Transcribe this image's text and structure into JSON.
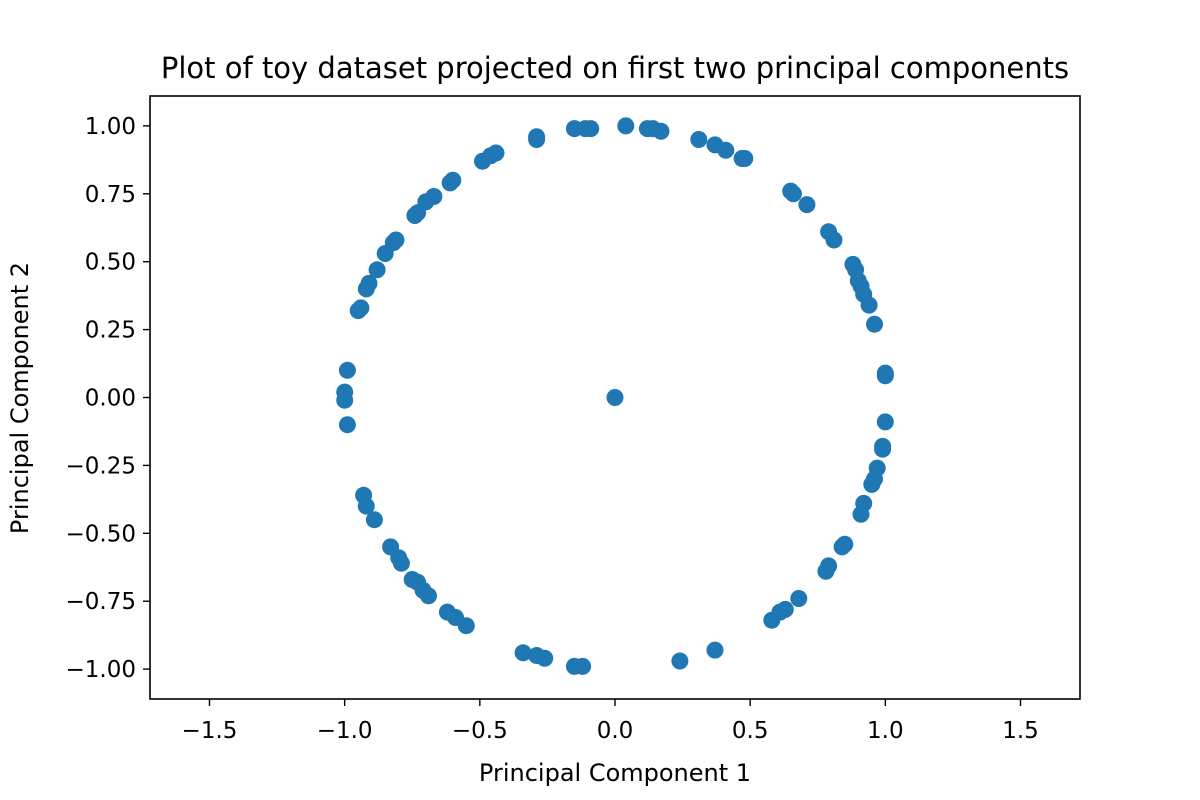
{
  "chart_data": {
    "type": "scatter",
    "title": "Plot of toy dataset projected on first two principal components",
    "xlabel": "Principal Component 1",
    "ylabel": "Principal Component 2",
    "xlim": [
      -1.72,
      1.72
    ],
    "ylim": [
      -1.11,
      1.11
    ],
    "xticks": [
      -1.5,
      -1.0,
      -0.5,
      0.0,
      0.5,
      1.0,
      1.5
    ],
    "xtick_labels": [
      "−1.5",
      "−1.0",
      "−0.5",
      "0.0",
      "0.5",
      "1.0",
      "1.5"
    ],
    "yticks": [
      1.0,
      0.75,
      0.5,
      0.25,
      0.0,
      -0.25,
      -0.5,
      -0.75,
      -1.0
    ],
    "ytick_labels": [
      "1.00",
      "0.75",
      "0.50",
      "0.25",
      "0.00",
      "−0.25",
      "−0.50",
      "−0.75",
      "−1.00"
    ],
    "grid": false,
    "marker_color": "#1f77b4",
    "series": [
      {
        "points": [
          [
            -0.29,
            0.96
          ],
          [
            -0.29,
            0.95
          ],
          [
            -0.15,
            0.99
          ],
          [
            -0.11,
            0.99
          ],
          [
            -0.09,
            0.99
          ],
          [
            0.04,
            1.0
          ],
          [
            0.12,
            0.99
          ],
          [
            0.14,
            0.99
          ],
          [
            0.17,
            0.98
          ],
          [
            0.31,
            0.95
          ],
          [
            0.37,
            0.93
          ],
          [
            0.41,
            0.91
          ],
          [
            0.47,
            0.88
          ],
          [
            0.48,
            0.88
          ],
          [
            -0.49,
            0.87
          ],
          [
            -0.46,
            0.89
          ],
          [
            -0.44,
            0.9
          ],
          [
            -0.6,
            0.8
          ],
          [
            -0.61,
            0.79
          ],
          [
            -0.67,
            0.74
          ],
          [
            -0.7,
            0.72
          ],
          [
            -0.73,
            0.68
          ],
          [
            -0.74,
            0.67
          ],
          [
            -0.81,
            0.58
          ],
          [
            -0.82,
            0.57
          ],
          [
            -0.85,
            0.53
          ],
          [
            -0.88,
            0.47
          ],
          [
            -0.91,
            0.42
          ],
          [
            -0.92,
            0.4
          ],
          [
            -0.94,
            0.33
          ],
          [
            -0.95,
            0.32
          ],
          [
            0.65,
            0.76
          ],
          [
            0.66,
            0.75
          ],
          [
            0.71,
            0.71
          ],
          [
            0.79,
            0.61
          ],
          [
            0.81,
            0.58
          ],
          [
            0.88,
            0.49
          ],
          [
            0.89,
            0.47
          ],
          [
            0.9,
            0.43
          ],
          [
            0.91,
            0.41
          ],
          [
            0.92,
            0.38
          ],
          [
            0.94,
            0.34
          ],
          [
            0.96,
            0.27
          ],
          [
            1.0,
            0.09
          ],
          [
            1.0,
            0.08
          ],
          [
            1.0,
            -0.09
          ],
          [
            -0.99,
            0.1
          ],
          [
            -1.0,
            0.02
          ],
          [
            -1.0,
            -0.01
          ],
          [
            -0.99,
            -0.1
          ],
          [
            0.0,
            0.0
          ],
          [
            0.99,
            -0.18
          ],
          [
            0.99,
            -0.19
          ],
          [
            0.97,
            -0.26
          ],
          [
            0.96,
            -0.3
          ],
          [
            0.95,
            -0.32
          ],
          [
            0.92,
            -0.39
          ],
          [
            0.91,
            -0.43
          ],
          [
            0.85,
            -0.54
          ],
          [
            0.84,
            -0.55
          ],
          [
            0.79,
            -0.62
          ],
          [
            0.78,
            -0.64
          ],
          [
            0.68,
            -0.74
          ],
          [
            0.63,
            -0.78
          ],
          [
            0.61,
            -0.79
          ],
          [
            0.58,
            -0.82
          ],
          [
            -0.93,
            -0.36
          ],
          [
            -0.92,
            -0.4
          ],
          [
            -0.89,
            -0.45
          ],
          [
            -0.83,
            -0.55
          ],
          [
            -0.8,
            -0.59
          ],
          [
            -0.79,
            -0.61
          ],
          [
            -0.75,
            -0.67
          ],
          [
            -0.73,
            -0.68
          ],
          [
            -0.71,
            -0.71
          ],
          [
            -0.69,
            -0.73
          ],
          [
            -0.62,
            -0.79
          ],
          [
            -0.59,
            -0.81
          ],
          [
            -0.55,
            -0.84
          ],
          [
            -0.34,
            -0.94
          ],
          [
            -0.29,
            -0.95
          ],
          [
            -0.26,
            -0.96
          ],
          [
            -0.15,
            -0.99
          ],
          [
            -0.12,
            -0.99
          ],
          [
            0.24,
            -0.97
          ],
          [
            0.37,
            -0.93
          ]
        ]
      }
    ]
  }
}
